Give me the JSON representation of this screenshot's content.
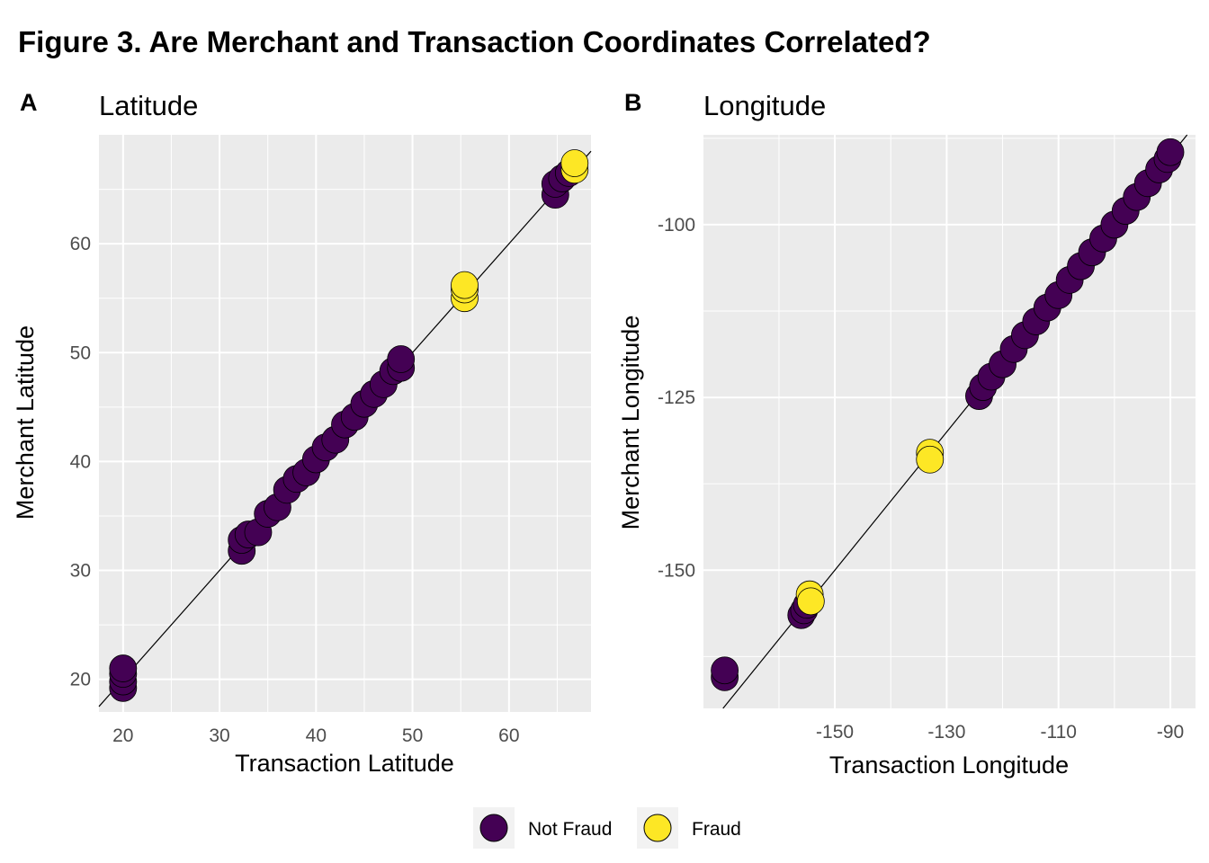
{
  "figure_title": "Figure 3. Are Merchant and Transaction Coordinates Correlated?",
  "legend": {
    "items": [
      {
        "label": "Not Fraud",
        "color": "#440154"
      },
      {
        "label": "Fraud",
        "color": "#FDE725"
      }
    ]
  },
  "colors": {
    "panel_background": "#EBEBEB",
    "grid": "#FFFFFF",
    "not_fraud": "#440154",
    "fraud": "#FDE725",
    "reference_line": "#000000"
  },
  "chart_data": [
    {
      "type": "scatter",
      "tag": "A",
      "title": "Latitude",
      "xlabel": "Transaction Latitude",
      "ylabel": "Merchant Latitude",
      "xlim": [
        17.5,
        68.5
      ],
      "ylim": [
        17,
        70
      ],
      "xticks": [
        20,
        30,
        40,
        50,
        60
      ],
      "yticks": [
        20,
        30,
        40,
        50,
        60
      ],
      "grid": true,
      "reference_line": "y = x",
      "series": [
        {
          "name": "Not Fraud",
          "points": [
            [
              20,
              19.2
            ],
            [
              20,
              19.8
            ],
            [
              20,
              20.5
            ],
            [
              20,
              21.0
            ],
            [
              32.3,
              31.8
            ],
            [
              32.3,
              32.8
            ],
            [
              33,
              33.3
            ],
            [
              34,
              33.5
            ],
            [
              35,
              35.2
            ],
            [
              36,
              35.8
            ],
            [
              37,
              37.4
            ],
            [
              38,
              38.4
            ],
            [
              39,
              39.0
            ],
            [
              40,
              40.2
            ],
            [
              41,
              41.3
            ],
            [
              42,
              42.0
            ],
            [
              43,
              43.4
            ],
            [
              44,
              44.1
            ],
            [
              45,
              45.3
            ],
            [
              46,
              46.2
            ],
            [
              47,
              47.1
            ],
            [
              48,
              48.3
            ],
            [
              48.8,
              48.6
            ],
            [
              48.8,
              49.4
            ],
            [
              64.8,
              64.5
            ],
            [
              64.8,
              65.5
            ],
            [
              65.5,
              66.0
            ],
            [
              66.2,
              66.5
            ]
          ]
        },
        {
          "name": "Fraud",
          "points": [
            [
              55.4,
              55.0
            ],
            [
              55.4,
              55.8
            ],
            [
              55.4,
              56.2
            ],
            [
              66.8,
              66.8
            ],
            [
              66.8,
              67.4
            ]
          ]
        }
      ]
    },
    {
      "type": "scatter",
      "tag": "B",
      "title": "Longitude",
      "xlabel": "Transaction Longitude",
      "ylabel": "Merchant Longitude",
      "xlim": [
        -173.5,
        -85.5
      ],
      "ylim": [
        -170,
        -87
      ],
      "xticks": [
        -150,
        -130,
        -110,
        -90
      ],
      "yticks": [
        -100,
        -125,
        -150
      ],
      "grid": true,
      "reference_line": "y = x",
      "series": [
        {
          "name": "Not Fraud",
          "points": [
            [
              -169.7,
              -165.5
            ],
            [
              -169.7,
              -164.5
            ],
            [
              -156,
              -156.5
            ],
            [
              -155.5,
              -155.8
            ],
            [
              -155,
              -155.0
            ],
            [
              -124.2,
              -124.8
            ],
            [
              -123.5,
              -123.5
            ],
            [
              -122,
              -122.0
            ],
            [
              -120,
              -120.2
            ],
            [
              -118,
              -118.0
            ],
            [
              -116,
              -116.0
            ],
            [
              -114,
              -114.0
            ],
            [
              -112,
              -112.0
            ],
            [
              -110,
              -110.2
            ],
            [
              -108,
              -108.0
            ],
            [
              -106,
              -106.0
            ],
            [
              -104,
              -104.0
            ],
            [
              -102,
              -102.0
            ],
            [
              -100,
              -100.0
            ],
            [
              -98,
              -98.0
            ],
            [
              -96,
              -96.0
            ],
            [
              -94,
              -94.0
            ],
            [
              -92,
              -92.0
            ],
            [
              -90.5,
              -90.5
            ],
            [
              -90,
              -89.5
            ]
          ]
        },
        {
          "name": "Fraud",
          "points": [
            [
              -154.5,
              -153.5
            ],
            [
              -154.3,
              -154.5
            ],
            [
              -133,
              -133.0
            ],
            [
              -133,
              -134.0
            ]
          ]
        }
      ]
    }
  ]
}
